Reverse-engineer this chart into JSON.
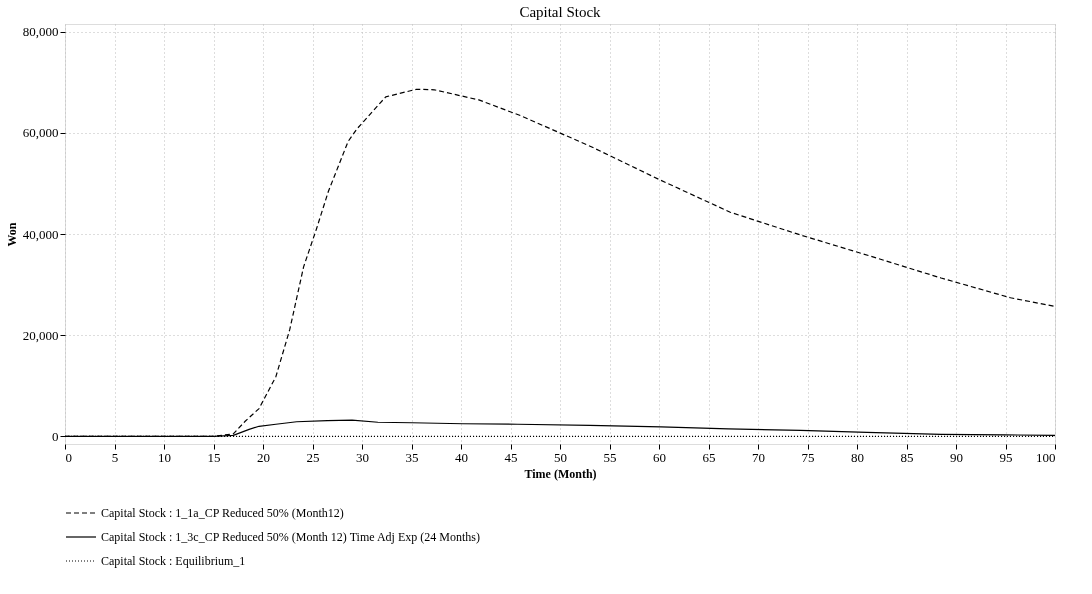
{
  "chart_data": {
    "type": "line",
    "title": "Capital Stock",
    "xlabel": "Time (Month)",
    "ylabel": "Won",
    "xlim": [
      0,
      100
    ],
    "xticks": [
      0,
      5,
      10,
      15,
      20,
      25,
      30,
      35,
      40,
      45,
      50,
      55,
      60,
      65,
      70,
      75,
      80,
      85,
      90,
      95,
      100
    ],
    "ylim": [
      -1500,
      81500
    ],
    "yticks": [
      {
        "value": 0,
        "label": "0"
      },
      {
        "value": 20000,
        "label": "20,000"
      },
      {
        "value": 40000,
        "label": "40,000"
      },
      {
        "value": 60000,
        "label": "60,000"
      },
      {
        "value": 80000,
        "label": "80,000"
      }
    ],
    "grid": true,
    "legend": "bottom",
    "marker": "none",
    "series": [
      {
        "name": "Capital Stock : 1_1a_CP Reduced 50% (Month12)",
        "color": "#000000",
        "line_style": "dashed",
        "x": [
          0,
          15,
          17,
          18.2,
          19.6,
          21.3,
          22.7,
          24.1,
          25.4,
          26.6,
          28.6,
          29.5,
          32.4,
          35.5,
          37.3,
          41.8,
          46,
          53.1,
          60.2,
          67.2,
          74.3,
          81.4,
          88.5,
          95.5,
          100
        ],
        "values": [
          0,
          0,
          500,
          3000,
          5500,
          11800,
          21100,
          33500,
          41000,
          48400,
          58300,
          60800,
          67100,
          68600,
          68500,
          66500,
          63400,
          57300,
          50600,
          44300,
          39800,
          35600,
          31300,
          27400,
          25700
        ]
      },
      {
        "name": "Capital Stock : 1_3c_CP Reduced 50% (Month 12) Time Adj Exp (24 Months)",
        "color": "#000000",
        "line_style": "solid",
        "x": [
          0,
          15,
          17,
          18.6,
          19.6,
          21.3,
          23.4,
          26.5,
          29,
          31.6,
          35,
          40.2,
          45.7,
          53,
          60.2,
          67,
          74.3,
          81,
          88.5,
          95,
          100
        ],
        "values": [
          0,
          0,
          200,
          1400,
          2000,
          2400,
          2900,
          3100,
          3200,
          2800,
          2700,
          2500,
          2400,
          2200,
          1900,
          1500,
          1200,
          800,
          400,
          300,
          200
        ]
      },
      {
        "name": "Capital Stock : Equilibrium_1",
        "color": "#000000",
        "line_style": "dotted",
        "x": [
          0,
          100
        ],
        "values": [
          0,
          0
        ]
      }
    ]
  }
}
